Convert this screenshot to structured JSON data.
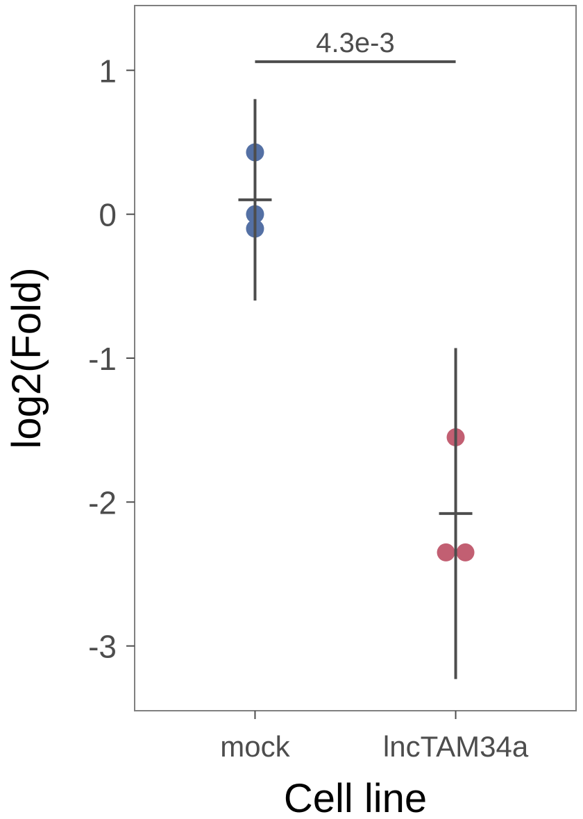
{
  "chart_data": {
    "type": "scatter",
    "title": "",
    "xlabel": "Cell line",
    "ylabel": "log2(Fold)",
    "categories": [
      "mock",
      "lncTAM34a"
    ],
    "ylim": [
      -3.45,
      1.45
    ],
    "yticks": [
      1,
      0,
      -1,
      -2,
      -3
    ],
    "ytick_labels": [
      "1",
      "0",
      "-1",
      "-2",
      "-3"
    ],
    "grid": false,
    "legend": "none",
    "series": [
      {
        "category": "mock",
        "color": "#5470a4",
        "points": [
          0.43,
          0.0,
          -0.1
        ],
        "mean": 0.1,
        "error_low": -0.6,
        "error_high": 0.8
      },
      {
        "category": "lncTAM34a",
        "color": "#c25f72",
        "points": [
          -1.55,
          -2.35,
          -2.35
        ],
        "mean": -2.08,
        "error_low": -3.23,
        "error_high": -0.93
      }
    ],
    "significance": {
      "from": "mock",
      "to": "lncTAM34a",
      "y": 1.06,
      "label": "4.3e-3"
    }
  }
}
